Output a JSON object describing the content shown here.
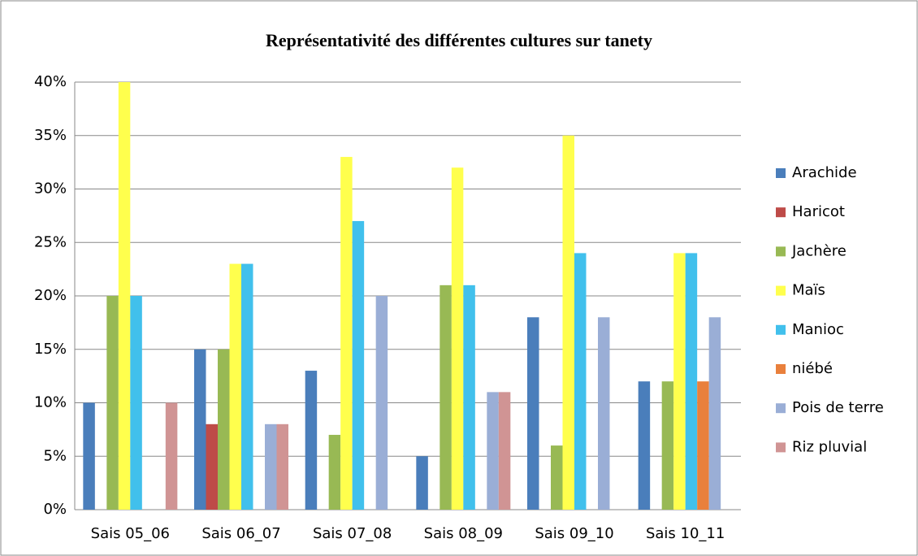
{
  "chart_data": {
    "type": "bar",
    "title": "Représentativité des différentes cultures sur tanety",
    "categories": [
      "Sais 05_06",
      "Sais 06_07",
      "Sais 07_08",
      "Sais 08_09",
      "Sais 09_10",
      "Sais 10_11"
    ],
    "series": [
      {
        "name": "Arachide",
        "color": "#4a7ebb",
        "values": [
          10,
          15,
          13,
          5,
          18,
          12
        ]
      },
      {
        "name": "Haricot",
        "color": "#be4b48",
        "values": [
          0,
          8,
          0,
          0,
          0,
          0
        ]
      },
      {
        "name": "Jachère",
        "color": "#98b954",
        "values": [
          20,
          15,
          7,
          21,
          6,
          12
        ]
      },
      {
        "name": "Maïs",
        "color": "#ffff4d",
        "values": [
          40,
          23,
          33,
          32,
          35,
          24
        ]
      },
      {
        "name": "Manioc",
        "color": "#41c0ec",
        "values": [
          20,
          23,
          27,
          21,
          24,
          24
        ]
      },
      {
        "name": "niébé",
        "color": "#e9803c",
        "values": [
          0,
          0,
          0,
          0,
          0,
          12
        ]
      },
      {
        "name": "Pois de terre",
        "color": "#9aaed6",
        "values": [
          0,
          8,
          20,
          11,
          18,
          18
        ]
      },
      {
        "name": "Riz pluvial",
        "color": "#d09494",
        "values": [
          10,
          8,
          0,
          11,
          0,
          0
        ]
      }
    ],
    "ylim": [
      0,
      40
    ],
    "yticks": [
      {
        "value": 0,
        "label": "0%"
      },
      {
        "value": 5,
        "label": "5%"
      },
      {
        "value": 10,
        "label": "10%"
      },
      {
        "value": 15,
        "label": "15%"
      },
      {
        "value": 20,
        "label": "20%"
      },
      {
        "value": 25,
        "label": "25%"
      },
      {
        "value": 30,
        "label": "30%"
      },
      {
        "value": 35,
        "label": "35%"
      },
      {
        "value": 40,
        "label": "40%"
      }
    ],
    "grid": true,
    "legend": "right"
  }
}
